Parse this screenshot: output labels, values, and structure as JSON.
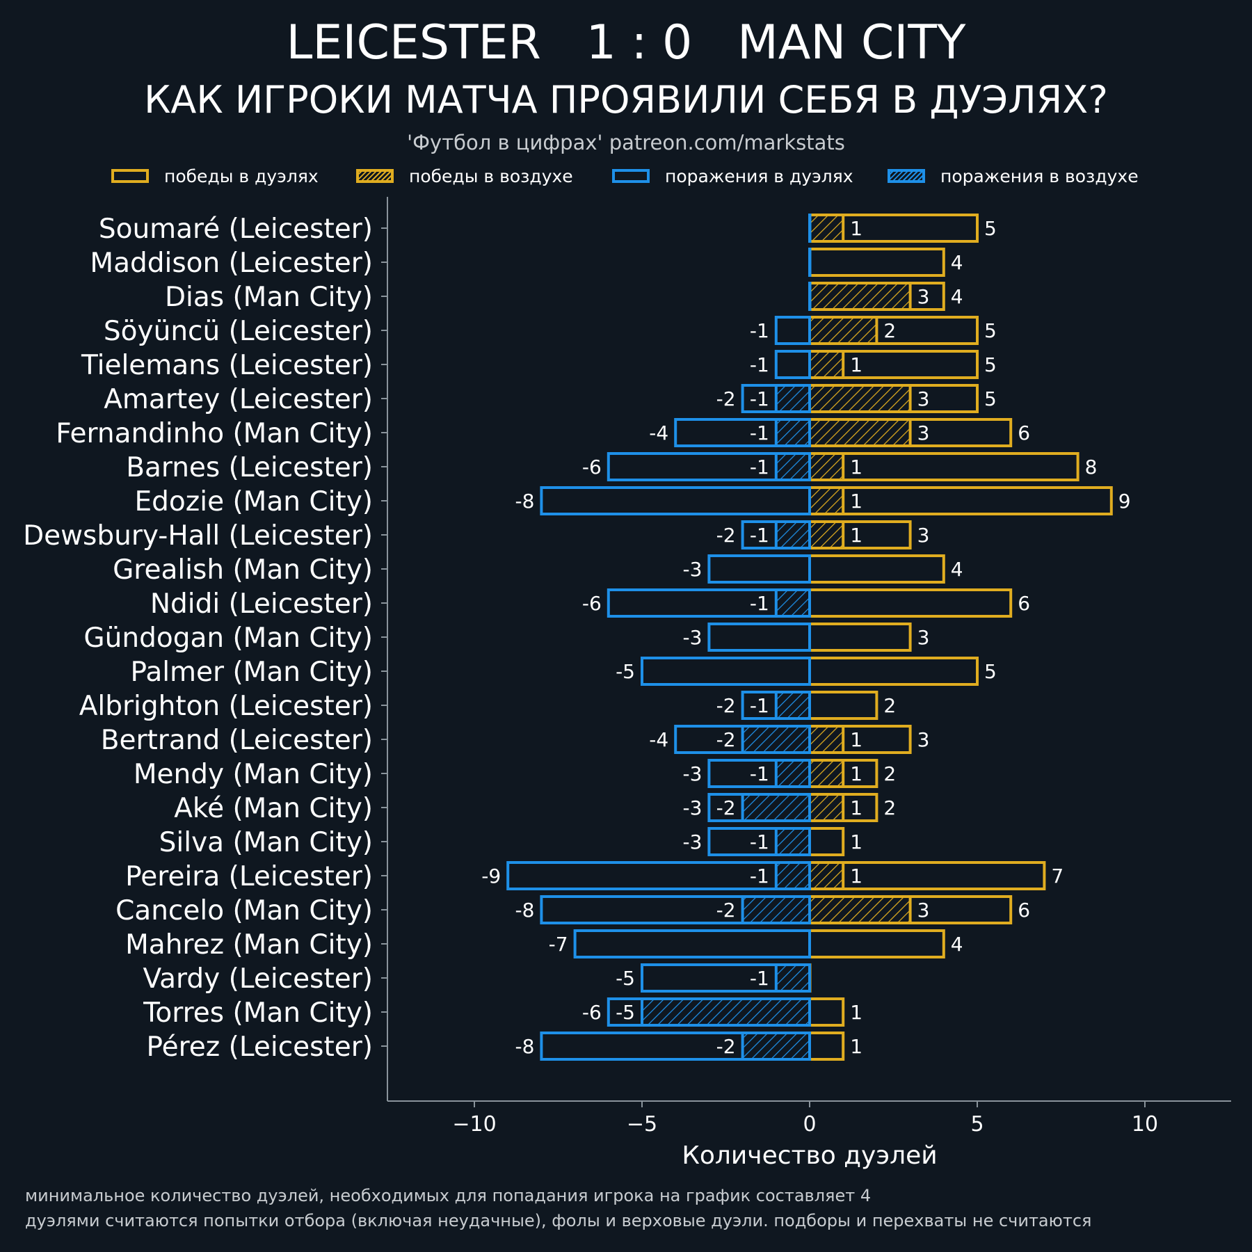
{
  "header": {
    "title": "LEICESTER   1 : 0   MAN CITY",
    "subtitle": "КАК ИГРОКИ МАТЧА ПРОЯВИЛИ СЕБЯ В ДУЭЛЯХ?",
    "source": "'Футбол в цифрах' patreon.com/markstats"
  },
  "colors": {
    "background": "#0f1720",
    "wins": "#e0ad20",
    "losses": "#1e90e8",
    "axis": "#8a949c"
  },
  "legend": {
    "position": "top",
    "items": [
      {
        "label": "победы в дуэлях",
        "color": "#e0ad20",
        "hatched": false
      },
      {
        "label": "победы в воздухе",
        "color": "#e0ad20",
        "hatched": true
      },
      {
        "label": "поражения в дуэлях",
        "color": "#1e90e8",
        "hatched": false
      },
      {
        "label": "поражения в воздухе",
        "color": "#1e90e8",
        "hatched": true
      }
    ]
  },
  "chart_data": {
    "type": "bar",
    "orientation": "horizontal",
    "xlabel": "Количество дуэлей",
    "xlim": [
      -12.8,
      12.4
    ],
    "xticks": [
      -10,
      -5,
      0,
      5,
      10
    ],
    "xtick_labels": [
      "−10",
      "−5",
      "0",
      "5",
      "10"
    ],
    "grid": false,
    "players": [
      {
        "name": "Soumaré (Leicester)",
        "duel_losses": 0,
        "aerial_losses": 0,
        "aerial_wins": 1,
        "duel_wins": 5
      },
      {
        "name": "Maddison (Leicester)",
        "duel_losses": 0,
        "aerial_losses": 0,
        "aerial_wins": 0,
        "duel_wins": 4
      },
      {
        "name": "Dias (Man City)",
        "duel_losses": 0,
        "aerial_losses": 0,
        "aerial_wins": 3,
        "duel_wins": 4
      },
      {
        "name": "Söyüncü (Leicester)",
        "duel_losses": -1,
        "aerial_losses": 0,
        "aerial_wins": 2,
        "duel_wins": 5
      },
      {
        "name": "Tielemans (Leicester)",
        "duel_losses": -1,
        "aerial_losses": 0,
        "aerial_wins": 1,
        "duel_wins": 5
      },
      {
        "name": "Amartey (Leicester)",
        "duel_losses": -2,
        "aerial_losses": -1,
        "aerial_wins": 3,
        "duel_wins": 5
      },
      {
        "name": "Fernandinho (Man City)",
        "duel_losses": -4,
        "aerial_losses": -1,
        "aerial_wins": 3,
        "duel_wins": 6
      },
      {
        "name": "Barnes (Leicester)",
        "duel_losses": -6,
        "aerial_losses": -1,
        "aerial_wins": 1,
        "duel_wins": 8
      },
      {
        "name": "Edozie (Man City)",
        "duel_losses": -8,
        "aerial_losses": 0,
        "aerial_wins": 1,
        "duel_wins": 9
      },
      {
        "name": "Dewsbury-Hall (Leicester)",
        "duel_losses": -2,
        "aerial_losses": -1,
        "aerial_wins": 1,
        "duel_wins": 3
      },
      {
        "name": "Grealish (Man City)",
        "duel_losses": -3,
        "aerial_losses": 0,
        "aerial_wins": 0,
        "duel_wins": 4
      },
      {
        "name": "Ndidi (Leicester)",
        "duel_losses": -6,
        "aerial_losses": -1,
        "aerial_wins": 0,
        "duel_wins": 6
      },
      {
        "name": "Gündogan (Man City)",
        "duel_losses": -3,
        "aerial_losses": 0,
        "aerial_wins": 0,
        "duel_wins": 3
      },
      {
        "name": "Palmer (Man City)",
        "duel_losses": -5,
        "aerial_losses": 0,
        "aerial_wins": 0,
        "duel_wins": 5
      },
      {
        "name": "Albrighton (Leicester)",
        "duel_losses": -2,
        "aerial_losses": -1,
        "aerial_wins": 0,
        "duel_wins": 2
      },
      {
        "name": "Bertrand (Leicester)",
        "duel_losses": -4,
        "aerial_losses": -2,
        "aerial_wins": 1,
        "duel_wins": 3
      },
      {
        "name": "Mendy (Man City)",
        "duel_losses": -3,
        "aerial_losses": -1,
        "aerial_wins": 1,
        "duel_wins": 2
      },
      {
        "name": "Aké (Man City)",
        "duel_losses": -3,
        "aerial_losses": -2,
        "aerial_wins": 1,
        "duel_wins": 2
      },
      {
        "name": "Silva (Man City)",
        "duel_losses": -3,
        "aerial_losses": -1,
        "aerial_wins": 0,
        "duel_wins": 1
      },
      {
        "name": "Pereira (Leicester)",
        "duel_losses": -9,
        "aerial_losses": -1,
        "aerial_wins": 1,
        "duel_wins": 7
      },
      {
        "name": "Cancelo (Man City)",
        "duel_losses": -8,
        "aerial_losses": -2,
        "aerial_wins": 3,
        "duel_wins": 6
      },
      {
        "name": "Mahrez (Man City)",
        "duel_losses": -7,
        "aerial_losses": 0,
        "aerial_wins": 0,
        "duel_wins": 4
      },
      {
        "name": "Vardy (Leicester)",
        "duel_losses": -5,
        "aerial_losses": -1,
        "aerial_wins": 0,
        "duel_wins": 0
      },
      {
        "name": "Torres (Man City)",
        "duel_losses": -6,
        "aerial_losses": -5,
        "aerial_wins": 0,
        "duel_wins": 1
      },
      {
        "name": "Pérez (Leicester)",
        "duel_losses": -8,
        "aerial_losses": -2,
        "aerial_wins": 0,
        "duel_wins": 1
      }
    ]
  },
  "footnotes": {
    "line1": "минимальное количество дуэлей, необходимых для попадания игрока на график составляет 4",
    "line2": "дуэлями считаются попытки отбора (включая неудачные), фолы и верховые дуэли. подборы и перехваты не считаются"
  }
}
